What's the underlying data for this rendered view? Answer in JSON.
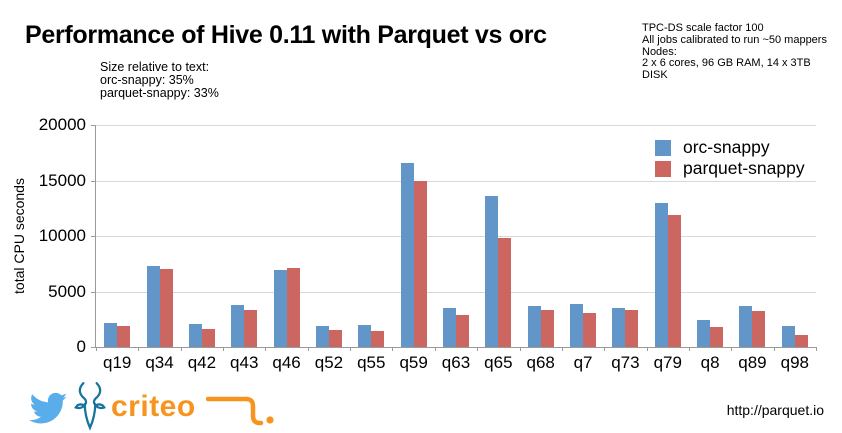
{
  "title": "Performance of Hive 0.11 with Parquet vs orc",
  "annotation": {
    "lines": [
      "Size relative to text:",
      "orc-snappy: 35%",
      "parquet-snappy: 33%"
    ]
  },
  "info_box": {
    "lines": [
      "TPC-DS scale factor 100",
      "All jobs calibrated to run ~50 mappers",
      "Nodes:",
      "2 x 6 cores, 96 GB RAM, 14 x 3TB",
      "DISK"
    ]
  },
  "chart_data": {
    "type": "bar",
    "title": "",
    "ylabel": "total CPU seconds",
    "xlabel": "",
    "ylim": [
      0,
      20000
    ],
    "yticks": [
      0,
      5000,
      10000,
      15000,
      20000
    ],
    "grid": true,
    "legend_position": "top-right",
    "categories": [
      "q19",
      "q34",
      "q42",
      "q43",
      "q46",
      "q52",
      "q55",
      "q59",
      "q63",
      "q65",
      "q68",
      "q7",
      "q73",
      "q79",
      "q8",
      "q89",
      "q98"
    ],
    "series": [
      {
        "name": "orc-snappy",
        "color": "#6296C9",
        "values": [
          2200,
          7300,
          2050,
          3800,
          6900,
          1900,
          2000,
          16600,
          3550,
          13600,
          3700,
          3900,
          3550,
          12950,
          2400,
          3700,
          1900
        ]
      },
      {
        "name": "parquet-snappy",
        "color": "#CC6661",
        "values": [
          1850,
          7050,
          1650,
          3350,
          7150,
          1500,
          1400,
          15000,
          2900,
          9800,
          3300,
          3050,
          3300,
          11850,
          1800,
          3200,
          1100
        ]
      }
    ]
  },
  "footer": {
    "url": "http://parquet.io",
    "criteo_text": "criteo",
    "icons": [
      "twitter-icon",
      "antelope-logo",
      "criteo-logo"
    ]
  },
  "colors": {
    "bar_blue": "#6296C9",
    "bar_red": "#CC6661",
    "gridline": "#d8d8d8",
    "axis": "#9a9a9a",
    "twitter_blue": "#59ADEB",
    "antelope_blue": "#17749C",
    "criteo_orange": "#F7941E",
    "text": "#000000"
  }
}
